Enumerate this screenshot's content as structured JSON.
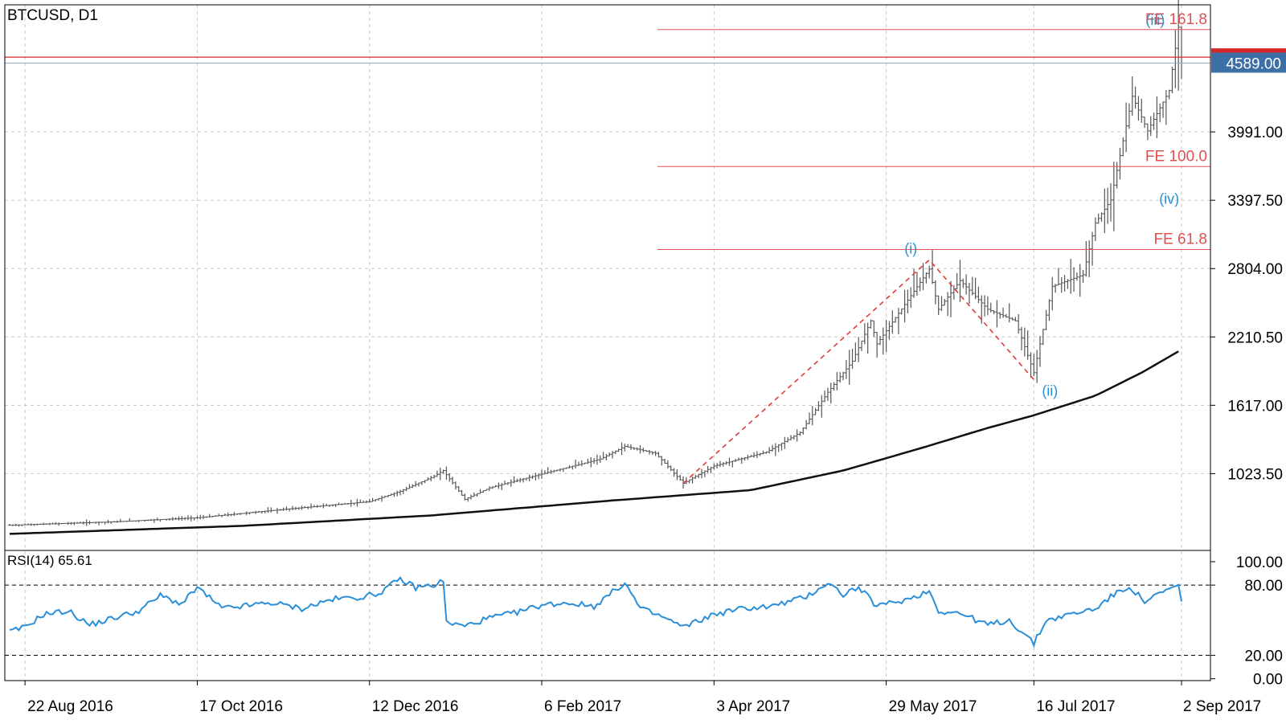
{
  "chart_data": [
    {
      "type": "ohlc",
      "title": "BTCUSD, D1",
      "y_ticks": [
        "3991.00",
        "3397.50",
        "2804.00",
        "2210.50",
        "1617.00",
        "1023.50"
      ],
      "ylim": [
        440,
        4990
      ],
      "current_price": "4589.00",
      "x_ticks": [
        "22 Aug 2016",
        "17 Oct 2016",
        "12 Dec 2016",
        "6 Feb 2017",
        "3 Apr 2017",
        "29 May 2017",
        "16 Jul 2017",
        "2 Sep 2017"
      ],
      "x_range": [
        "2016-08-17",
        "2017-09-02"
      ],
      "price_anchors": [
        [
          "2016-08-17",
          575
        ],
        [
          "2016-09-20",
          605
        ],
        [
          "2016-10-17",
          640
        ],
        [
          "2016-11-15",
          715
        ],
        [
          "2016-12-12",
          780
        ],
        [
          "2016-12-22",
          870
        ],
        [
          "2016-12-27",
          930
        ],
        [
          "2017-01-02",
          1000
        ],
        [
          "2017-01-05",
          1050
        ],
        [
          "2017-01-12",
          800
        ],
        [
          "2017-01-20",
          900
        ],
        [
          "2017-02-06",
          1020
        ],
        [
          "2017-02-25",
          1150
        ],
        [
          "2017-03-05",
          1260
        ],
        [
          "2017-03-15",
          1200
        ],
        [
          "2017-03-24",
          940
        ],
        [
          "2017-04-03",
          1090
        ],
        [
          "2017-04-20",
          1210
        ],
        [
          "2017-05-01",
          1380
        ],
        [
          "2017-05-10",
          1730
        ],
        [
          "2017-05-18",
          2000
        ],
        [
          "2017-05-24",
          2350
        ],
        [
          "2017-05-26",
          2150
        ],
        [
          "2017-06-05",
          2530
        ],
        [
          "2017-06-12",
          2800
        ],
        [
          "2017-06-15",
          2450
        ],
        [
          "2017-06-22",
          2700
        ],
        [
          "2017-07-01",
          2450
        ],
        [
          "2017-07-10",
          2350
        ],
        [
          "2017-07-16",
          1900
        ],
        [
          "2017-07-22",
          2650
        ],
        [
          "2017-08-01",
          2750
        ],
        [
          "2017-08-05",
          3200
        ],
        [
          "2017-08-10",
          3400
        ],
        [
          "2017-08-17",
          4300
        ],
        [
          "2017-08-22",
          4000
        ],
        [
          "2017-08-29",
          4350
        ],
        [
          "2017-09-01",
          4900
        ],
        [
          "2017-09-02",
          4589
        ]
      ],
      "moving_average": [
        [
          "2016-08-17",
          500
        ],
        [
          "2016-11-01",
          570
        ],
        [
          "2017-01-01",
          660
        ],
        [
          "2017-03-01",
          790
        ],
        [
          "2017-04-15",
          880
        ],
        [
          "2017-05-15",
          1050
        ],
        [
          "2017-06-10",
          1250
        ],
        [
          "2017-07-01",
          1420
        ],
        [
          "2017-07-16",
          1530
        ],
        [
          "2017-08-05",
          1700
        ],
        [
          "2017-08-20",
          1900
        ],
        [
          "2017-09-02",
          2100
        ]
      ],
      "elliott_wave": {
        "points": [
          [
            "2017-03-24",
            940
          ],
          [
            "2017-06-12",
            2880
          ],
          [
            "2017-07-16",
            1840
          ]
        ],
        "labels": [
          {
            "text": "(i)",
            "date": "2017-06-06",
            "price": 2880
          },
          {
            "text": "(ii)",
            "date": "2017-07-16",
            "price": 1840
          },
          {
            "text": "(iii)",
            "date": "2017-08-25",
            "price": 4990
          },
          {
            "text": "(iv)",
            "date": "2017-08-29",
            "price": 3410
          }
        ]
      },
      "fibonacci_extensions": [
        {
          "label": "FE 161.8",
          "price": 4880
        },
        {
          "label": "FE 100.0",
          "price": 3690
        },
        {
          "label": "FE 61.8",
          "price": 2970
        }
      ],
      "horizontal_lines": [
        4640,
        4589
      ],
      "colors": {
        "bars": "#555555",
        "moving_average": "#111111",
        "fib": "#e05050",
        "wave": "#e03a3a",
        "wave_label": "#2a8fd8",
        "price_label_bg": "#3c6fa6",
        "top_label_bg": "#d62828"
      }
    },
    {
      "type": "line",
      "title": "RSI(14) 65.61",
      "y_ticks": [
        "100.00",
        "80.00",
        "20.00",
        "0.00"
      ],
      "ylim": [
        0,
        100
      ],
      "levels": [
        80,
        20
      ],
      "x": [
        "2016-08-17",
        "2016-08-22",
        "2016-08-28",
        "2016-09-05",
        "2016-09-12",
        "2016-09-20",
        "2016-09-28",
        "2016-10-05",
        "2016-10-12",
        "2016-10-17",
        "2016-10-25",
        "2016-11-01",
        "2016-11-10",
        "2016-11-20",
        "2016-11-30",
        "2016-12-10",
        "2016-12-15",
        "2016-12-22",
        "2016-12-27",
        "2017-01-02",
        "2017-01-05",
        "2017-01-06",
        "2017-01-12",
        "2017-01-20",
        "2017-01-28",
        "2017-02-06",
        "2017-02-14",
        "2017-02-23",
        "2017-03-02",
        "2017-03-05",
        "2017-03-10",
        "2017-03-18",
        "2017-03-24",
        "2017-04-03",
        "2017-04-12",
        "2017-04-22",
        "2017-05-03",
        "2017-05-10",
        "2017-05-15",
        "2017-05-20",
        "2017-05-26",
        "2017-06-05",
        "2017-06-12",
        "2017-06-15",
        "2017-06-22",
        "2017-07-01",
        "2017-07-08",
        "2017-07-13",
        "2017-07-16",
        "2017-07-20",
        "2017-07-28",
        "2017-08-05",
        "2017-08-10",
        "2017-08-16",
        "2017-08-21",
        "2017-08-28",
        "2017-09-01",
        "2017-09-02"
      ],
      "values": [
        40,
        44,
        55,
        58,
        46,
        52,
        58,
        71,
        64,
        78,
        60,
        62,
        65,
        60,
        68,
        70,
        73,
        85,
        78,
        80,
        84,
        48,
        45,
        52,
        56,
        63,
        65,
        62,
        76,
        82,
        60,
        52,
        44,
        55,
        60,
        62,
        70,
        82,
        72,
        78,
        62,
        68,
        75,
        58,
        56,
        46,
        50,
        38,
        30,
        50,
        55,
        60,
        70,
        79,
        66,
        75,
        80,
        65.61
      ]
    }
  ]
}
